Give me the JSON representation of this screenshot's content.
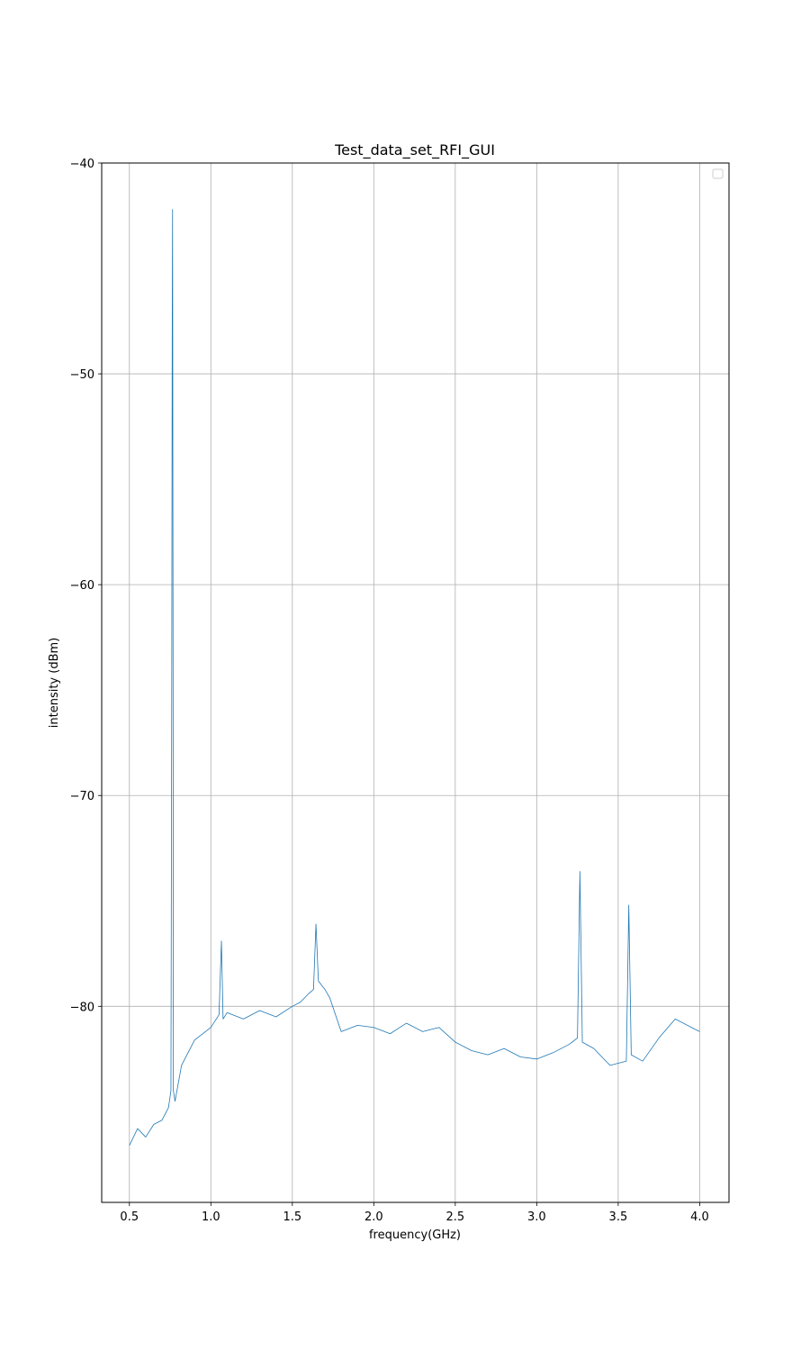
{
  "chart_data": {
    "type": "line",
    "title": "Test_data_set_RFI_GUI",
    "xlabel": "frequency(GHz)",
    "ylabel": "intensity (dBm)",
    "xlim": [
      0.33,
      4.18
    ],
    "ylim": [
      -89.3,
      -40.0
    ],
    "xticks": [
      0.5,
      1.0,
      1.5,
      2.0,
      2.5,
      3.0,
      3.5,
      4.0
    ],
    "xtick_labels": [
      "0.5",
      "1.0",
      "1.5",
      "2.0",
      "2.5",
      "3.0",
      "3.5",
      "4.0"
    ],
    "yticks": [
      -40,
      -50,
      -60,
      -70,
      -80
    ],
    "ytick_labels": [
      "−40",
      "−50",
      "−60",
      "−70",
      "−80"
    ],
    "grid": true,
    "legend": {
      "placement": "upper-right",
      "entries": []
    },
    "series_color": "#1f77b4",
    "series": [
      {
        "x": [
          0.5,
          0.55,
          0.6,
          0.65,
          0.7,
          0.74,
          0.755,
          0.76,
          0.763,
          0.765,
          0.768,
          0.77,
          0.78,
          0.82,
          0.9,
          1.0,
          1.05,
          1.065,
          1.075,
          1.1,
          1.2,
          1.3,
          1.4,
          1.5,
          1.55,
          1.6,
          1.63,
          1.645,
          1.66,
          1.7,
          1.73,
          1.8,
          1.9,
          2.0,
          2.1,
          2.2,
          2.3,
          2.4,
          2.5,
          2.6,
          2.7,
          2.8,
          2.9,
          3.0,
          3.1,
          3.2,
          3.25,
          3.265,
          3.28,
          3.35,
          3.45,
          3.55,
          3.565,
          3.58,
          3.65,
          3.75,
          3.85,
          3.95,
          4.0
        ],
        "y": [
          -86.6,
          -85.8,
          -86.2,
          -85.6,
          -85.4,
          -84.8,
          -84.0,
          -64.0,
          -47.2,
          -42.2,
          -64.0,
          -84.0,
          -84.5,
          -82.8,
          -81.6,
          -81.0,
          -80.4,
          -76.9,
          -80.6,
          -80.3,
          -80.6,
          -80.2,
          -80.5,
          -80.0,
          -79.8,
          -79.4,
          -79.2,
          -76.1,
          -78.8,
          -79.2,
          -79.6,
          -81.2,
          -80.9,
          -81.0,
          -81.3,
          -80.8,
          -81.2,
          -81.0,
          -81.7,
          -82.1,
          -82.3,
          -82.0,
          -82.4,
          -82.5,
          -82.2,
          -81.8,
          -81.5,
          -73.6,
          -81.7,
          -82.0,
          -82.8,
          -82.6,
          -75.2,
          -82.3,
          -82.6,
          -81.5,
          -80.6,
          -81.0,
          -81.2
        ]
      }
    ]
  }
}
